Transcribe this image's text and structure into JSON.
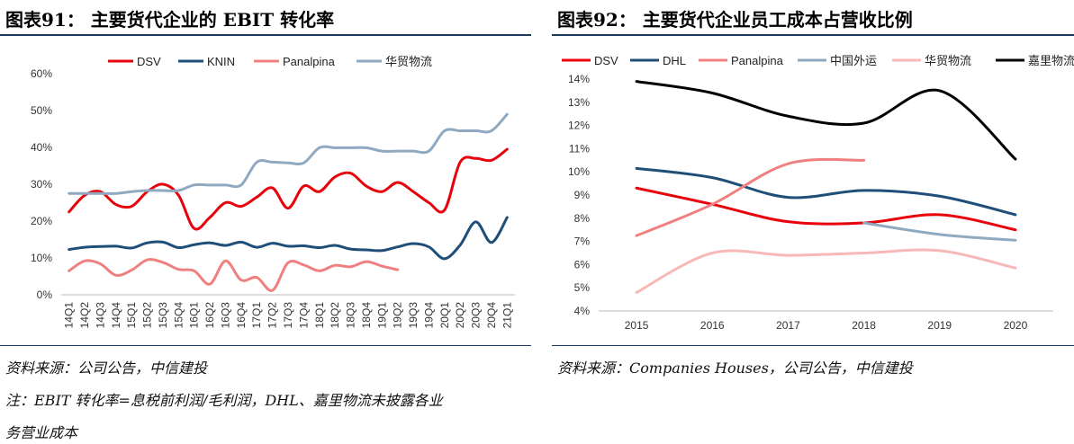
{
  "left": {
    "fig_title": "图表91： 主要货代企业的 EBIT 转化率",
    "source": "资料来源：公司公告，中信建投",
    "note_line1": "注：EBIT 转化率=息税前利润/毛利润，DHL、嘉里物流未披露各业",
    "note_line2": "务营业成本"
  },
  "right": {
    "fig_title": "图表92： 主要货代企业员工成本占营收比例",
    "source": "资料来源：Companies Houses，公司公告，中信建投"
  },
  "chart_data": [
    {
      "type": "line",
      "title": "",
      "xlabel": "",
      "ylabel": "",
      "ylim": [
        0,
        60
      ],
      "y_ticks": [
        "0%",
        "10%",
        "20%",
        "30%",
        "40%",
        "50%",
        "60%"
      ],
      "legend_position": "top",
      "grid": false,
      "categories": [
        "14Q1",
        "14Q2",
        "14Q3",
        "14Q4",
        "15Q1",
        "15Q2",
        "15Q3",
        "15Q4",
        "16Q1",
        "16Q2",
        "16Q3",
        "16Q4",
        "17Q1",
        "17Q2",
        "17Q3",
        "17Q4",
        "18Q1",
        "18Q2",
        "18Q3",
        "18Q4",
        "19Q1",
        "19Q2",
        "19Q3",
        "19Q4",
        "20Q1",
        "20Q2",
        "20Q3",
        "20Q4",
        "21Q1"
      ],
      "series": [
        {
          "name": "DSV",
          "color": "#e8000b",
          "values": [
            22.5,
            27,
            28,
            24.5,
            24,
            28,
            30,
            27,
            18,
            21,
            25,
            24,
            26.5,
            29,
            23.5,
            29.5,
            28,
            32,
            33,
            29.5,
            28,
            30.5,
            28,
            25,
            23,
            36,
            37,
            36.5,
            39.5
          ]
        },
        {
          "name": "KNIN",
          "color": "#1f4e79",
          "values": [
            12.3,
            12.9,
            13.1,
            13.2,
            12.7,
            14.1,
            14.3,
            12.8,
            13.6,
            14.1,
            13.4,
            14.3,
            12.9,
            14,
            13.2,
            13.3,
            12.8,
            13.4,
            12.4,
            12.2,
            12,
            13,
            13.9,
            13,
            9.8,
            13.5,
            19.8,
            14.2,
            21
          ]
        },
        {
          "name": "Panalpina",
          "color": "#f08080",
          "values": [
            6.5,
            9.2,
            8.4,
            5.3,
            6.7,
            9.5,
            8.8,
            6.9,
            6.5,
            2.9,
            9.2,
            4,
            4.7,
            1.2,
            8.7,
            8.1,
            6.5,
            8,
            7.6,
            9,
            7.8,
            6.8,
            null,
            null,
            null,
            null,
            null,
            null,
            null
          ]
        },
        {
          "name": "华贸物流",
          "color": "#8fa9c1",
          "values": [
            27.5,
            27.5,
            27.5,
            27.5,
            28,
            28.3,
            28.3,
            28.3,
            29.8,
            29.8,
            29.8,
            29.8,
            36,
            36,
            35.8,
            35.8,
            39.9,
            39.9,
            39.9,
            39.9,
            39,
            39,
            39,
            39,
            44.5,
            44.5,
            44.5,
            44.5,
            49
          ]
        }
      ]
    },
    {
      "type": "line",
      "title": "",
      "xlabel": "",
      "ylabel": "",
      "ylim": [
        4,
        14
      ],
      "y_ticks": [
        "4%",
        "5%",
        "6%",
        "7%",
        "8%",
        "9%",
        "10%",
        "11%",
        "12%",
        "13%",
        "14%"
      ],
      "legend_position": "top",
      "grid": false,
      "categories": [
        "2015",
        "2016",
        "2017",
        "2018",
        "2019",
        "2020"
      ],
      "series": [
        {
          "name": "DSV",
          "color": "#e8000b",
          "values": [
            9.3,
            8.6,
            7.85,
            7.8,
            8.15,
            7.5
          ]
        },
        {
          "name": "DHL",
          "color": "#1f4e79",
          "values": [
            10.15,
            9.75,
            8.9,
            9.2,
            8.95,
            8.15
          ]
        },
        {
          "name": "Panalpina",
          "color": "#f08080",
          "values": [
            7.25,
            8.6,
            10.35,
            10.5,
            null,
            null
          ]
        },
        {
          "name": "中国外运",
          "color": "#8fa9c1",
          "values": [
            null,
            null,
            null,
            7.8,
            7.3,
            7.05
          ]
        },
        {
          "name": "华贸物流",
          "color": "#f7b8b8",
          "values": [
            4.8,
            6.5,
            6.4,
            6.5,
            6.6,
            5.85
          ]
        },
        {
          "name": "嘉里物流",
          "color": "#000000",
          "values": [
            13.9,
            13.4,
            12.4,
            12.1,
            13.5,
            10.55
          ]
        }
      ]
    }
  ]
}
